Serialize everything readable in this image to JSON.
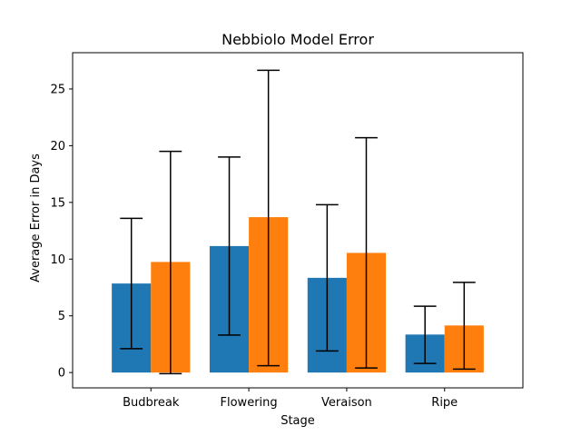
{
  "chart_data": {
    "type": "bar",
    "title": "Nebbiolo Model Error",
    "xlabel": "Stage",
    "ylabel": "Average Error in Days",
    "categories": [
      "Budbreak",
      "Flowering",
      "Veraison",
      "Ripe"
    ],
    "series": [
      {
        "color": "#1f77b4",
        "values": [
          7.85,
          11.15,
          8.35,
          3.35
        ],
        "err_low": [
          2.1,
          3.3,
          1.9,
          0.8
        ],
        "err_high": [
          13.6,
          19.0,
          14.8,
          5.85
        ]
      },
      {
        "color": "#ff7f0e",
        "values": [
          9.75,
          13.7,
          10.55,
          4.15
        ],
        "err_low": [
          -0.1,
          0.6,
          0.4,
          0.3
        ],
        "err_high": [
          19.5,
          26.65,
          20.7,
          7.95
        ]
      }
    ],
    "ylim": [
      -1.35,
      28.2
    ],
    "yticks": [
      0,
      5,
      10,
      15,
      20,
      25
    ],
    "grid": false,
    "legend": "none"
  }
}
